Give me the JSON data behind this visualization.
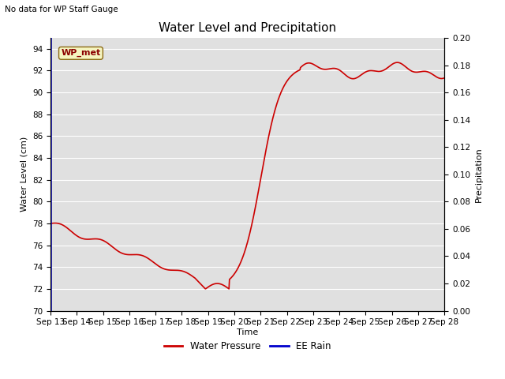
{
  "title": "Water Level and Precipitation",
  "subtitle": "No data for WP Staff Gauge",
  "xlabel": "Time",
  "ylabel_left": "Water Level (cm)",
  "ylabel_right": "Precipitation",
  "annotation_label": "WP_met",
  "ylim_left": [
    70,
    95
  ],
  "ylim_right": [
    0.0,
    0.2
  ],
  "yticks_left": [
    70,
    72,
    74,
    76,
    78,
    80,
    82,
    84,
    86,
    88,
    90,
    92,
    94
  ],
  "yticks_right": [
    0.0,
    0.02,
    0.04,
    0.06,
    0.08,
    0.1,
    0.12,
    0.14,
    0.16,
    0.18,
    0.2
  ],
  "xtick_labels": [
    "Sep 13",
    "Sep 14",
    "Sep 15",
    "Sep 16",
    "Sep 17",
    "Sep 18",
    "Sep 19",
    "Sep 20",
    "Sep 21",
    "Sep 22",
    "Sep 23",
    "Sep 24",
    "Sep 25",
    "Sep 26",
    "Sep 27",
    "Sep 28"
  ],
  "water_pressure_color": "#cc0000",
  "ee_rain_color": "#0000cc",
  "background_color": "#e0e0e0",
  "grid_color": "#ffffff",
  "annotation_bg": "#f5f5c0",
  "annotation_border": "#8b6914",
  "annotation_text_color": "#8b0000",
  "legend_water_label": "Water Pressure",
  "legend_rain_label": "EE Rain",
  "title_fontsize": 11,
  "axis_label_fontsize": 8,
  "tick_fontsize": 7.5
}
